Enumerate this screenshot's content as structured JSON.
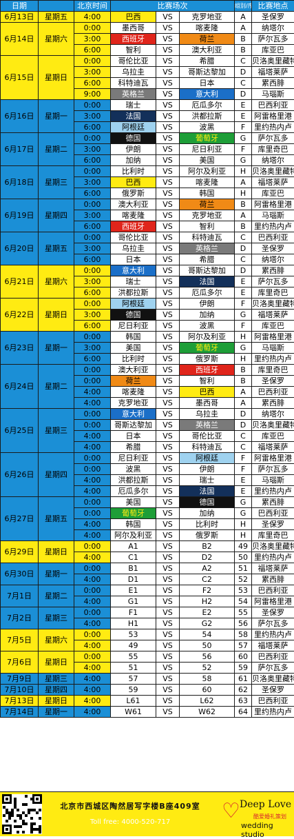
{
  "header": {
    "date": "日期",
    "time": "北京时间",
    "match": "比赛场次",
    "group": "组别/序号",
    "venue": "比赛地点",
    "vs": "VS"
  },
  "days": [
    {
      "date": "6月13日",
      "weekday": "星期五",
      "color": "yellow",
      "matches": [
        {
          "time": "4:00",
          "home": "巴西",
          "home_hl": "yellow",
          "away": "克罗地亚",
          "away_hl": "",
          "group": "A",
          "venue": "圣保罗"
        }
      ]
    },
    {
      "date": "6月14日",
      "weekday": "星期六",
      "color": "yellow",
      "matches": [
        {
          "time": "0:00",
          "home": "墨西哥",
          "home_hl": "",
          "away": "喀麦隆",
          "away_hl": "",
          "group": "A",
          "venue": "纳塔尔"
        },
        {
          "time": "3:00",
          "home": "西班牙",
          "home_hl": "red",
          "away": "荷兰",
          "away_hl": "orange",
          "group": "B",
          "venue": "萨尔瓦多"
        },
        {
          "time": "6:00",
          "home": "智利",
          "home_hl": "",
          "away": "澳大利亚",
          "away_hl": "",
          "group": "B",
          "venue": "库亚巴"
        }
      ]
    },
    {
      "date": "6月15日",
      "weekday": "星期日",
      "color": "yellow",
      "matches": [
        {
          "time": "0:00",
          "home": "哥伦比亚",
          "home_hl": "",
          "away": "希腊",
          "away_hl": "",
          "group": "C",
          "venue": "贝洛奥里藏特"
        },
        {
          "time": "3:00",
          "home": "乌拉圭",
          "home_hl": "",
          "away": "哥斯达黎加",
          "away_hl": "",
          "group": "D",
          "venue": "福塔莱萨"
        },
        {
          "time": "6:00",
          "home": "科特迪瓦",
          "home_hl": "",
          "away": "日本",
          "away_hl": "",
          "group": "C",
          "venue": "累西腓"
        },
        {
          "time": "9:00",
          "home": "英格兰",
          "home_hl": "gray",
          "away": "意大利",
          "away_hl": "blue",
          "group": "D",
          "venue": "马瑙斯"
        }
      ]
    },
    {
      "date": "6月16日",
      "weekday": "星期一",
      "color": "blue",
      "matches": [
        {
          "time": "0:00",
          "home": "瑞士",
          "home_hl": "",
          "away": "厄瓜多尔",
          "away_hl": "",
          "group": "E",
          "venue": "巴西利亚"
        },
        {
          "time": "3:00",
          "home": "法国",
          "home_hl": "navy",
          "away": "洪都拉斯",
          "away_hl": "",
          "group": "E",
          "venue": "阿雷格里港"
        },
        {
          "time": "6:00",
          "home": "阿根廷",
          "home_hl": "light",
          "away": "波黑",
          "away_hl": "",
          "group": "F",
          "venue": "里约热内卢"
        }
      ]
    },
    {
      "date": "6月17日",
      "weekday": "星期二",
      "color": "blue",
      "matches": [
        {
          "time": "0:00",
          "home": "德国",
          "home_hl": "black",
          "away": "葡萄牙",
          "away_hl": "green",
          "group": "G",
          "venue": "萨尔瓦多"
        },
        {
          "time": "3:00",
          "home": "伊朗",
          "home_hl": "",
          "away": "尼日利亚",
          "away_hl": "",
          "group": "F",
          "venue": "库里奇巴"
        },
        {
          "time": "6:00",
          "home": "加纳",
          "home_hl": "",
          "away": "美国",
          "away_hl": "",
          "group": "G",
          "venue": "纳塔尔"
        }
      ]
    },
    {
      "date": "6月18日",
      "weekday": "星期三",
      "color": "blue",
      "matches": [
        {
          "time": "0:00",
          "home": "比利时",
          "home_hl": "",
          "away": "阿尔及利亚",
          "away_hl": "",
          "group": "H",
          "venue": "贝洛奥里藏特"
        },
        {
          "time": "3:00",
          "home": "巴西",
          "home_hl": "yellow",
          "away": "喀麦隆",
          "away_hl": "",
          "group": "A",
          "venue": "福塔莱萨"
        },
        {
          "time": "6:00",
          "home": "俄罗斯",
          "home_hl": "",
          "away": "韩国",
          "away_hl": "",
          "group": "H",
          "venue": "库亚巴"
        }
      ]
    },
    {
      "date": "6月19日",
      "weekday": "星期四",
      "color": "blue",
      "matches": [
        {
          "time": "0:00",
          "home": "澳大利亚",
          "home_hl": "",
          "away": "荷兰",
          "away_hl": "orange",
          "group": "B",
          "venue": "阿雷格里港"
        },
        {
          "time": "3:00",
          "home": "喀麦隆",
          "home_hl": "",
          "away": "克罗地亚",
          "away_hl": "",
          "group": "A",
          "venue": "马瑙斯"
        },
        {
          "time": "6:00",
          "home": "西班牙",
          "home_hl": "red",
          "away": "智利",
          "away_hl": "",
          "group": "B",
          "venue": "里约热内卢"
        }
      ]
    },
    {
      "date": "6月20日",
      "weekday": "星期五",
      "color": "blue",
      "matches": [
        {
          "time": "0:00",
          "home": "哥伦比亚",
          "home_hl": "",
          "away": "科特迪瓦",
          "away_hl": "",
          "group": "C",
          "venue": "巴西利亚"
        },
        {
          "time": "3:00",
          "home": "乌拉圭",
          "home_hl": "",
          "away": "英格兰",
          "away_hl": "gray",
          "group": "D",
          "venue": "圣保罗"
        },
        {
          "time": "6:00",
          "home": "日本",
          "home_hl": "",
          "away": "希腊",
          "away_hl": "",
          "group": "C",
          "venue": "纳塔尔"
        }
      ]
    },
    {
      "date": "6月21日",
      "weekday": "星期六",
      "color": "yellow",
      "matches": [
        {
          "time": "0:00",
          "home": "意大利",
          "home_hl": "blue",
          "away": "哥斯达黎加",
          "away_hl": "",
          "group": "D",
          "venue": "累西腓"
        },
        {
          "time": "3:00",
          "home": "瑞士",
          "home_hl": "",
          "away": "法国",
          "away_hl": "navy",
          "group": "E",
          "venue": "萨尔瓦多"
        },
        {
          "time": "6:00",
          "home": "洪都拉斯",
          "home_hl": "",
          "away": "厄瓜多尔",
          "away_hl": "",
          "group": "E",
          "venue": "库里奇巴"
        }
      ]
    },
    {
      "date": "6月22日",
      "weekday": "星期日",
      "color": "yellow",
      "matches": [
        {
          "time": "0:00",
          "home": "阿根廷",
          "home_hl": "light",
          "away": "伊朗",
          "away_hl": "",
          "group": "F",
          "venue": "贝洛奥里藏特"
        },
        {
          "time": "3:00",
          "home": "德国",
          "home_hl": "black",
          "away": "加纳",
          "away_hl": "",
          "group": "G",
          "venue": "福塔莱萨"
        },
        {
          "time": "6:00",
          "home": "尼日利亚",
          "home_hl": "",
          "away": "波黑",
          "away_hl": "",
          "group": "F",
          "venue": "库亚巴"
        }
      ]
    },
    {
      "date": "6月23日",
      "weekday": "星期一",
      "color": "blue",
      "matches": [
        {
          "time": "0:00",
          "home": "韩国",
          "home_hl": "",
          "away": "阿尔及利亚",
          "away_hl": "",
          "group": "H",
          "venue": "阿雷格里港"
        },
        {
          "time": "3:00",
          "home": "美国",
          "home_hl": "",
          "away": "葡萄牙",
          "away_hl": "green",
          "group": "G",
          "venue": "马瑙斯"
        },
        {
          "time": "6:00",
          "home": "比利时",
          "home_hl": "",
          "away": "俄罗斯",
          "away_hl": "",
          "group": "H",
          "venue": "里约热内卢"
        }
      ]
    },
    {
      "date": "6月24日",
      "weekday": "星期二",
      "color": "blue",
      "matches": [
        {
          "time": "0:00",
          "home": "澳大利亚",
          "home_hl": "",
          "away": "西班牙",
          "away_hl": "red",
          "group": "B",
          "venue": "库里奇巴"
        },
        {
          "time": "0:00",
          "home": "荷兰",
          "home_hl": "orange",
          "away": "智利",
          "away_hl": "",
          "group": "B",
          "venue": "圣保罗"
        },
        {
          "time": "4:00",
          "home": "喀麦隆",
          "home_hl": "",
          "away": "巴西",
          "away_hl": "yellow",
          "group": "A",
          "venue": "巴西利亚"
        },
        {
          "time": "4:00",
          "home": "克罗地亚",
          "home_hl": "",
          "away": "墨西哥",
          "away_hl": "",
          "group": "A",
          "venue": "累西腓"
        }
      ]
    },
    {
      "date": "6月25日",
      "weekday": "星期三",
      "color": "blue",
      "matches": [
        {
          "time": "0:00",
          "home": "意大利",
          "home_hl": "blue",
          "away": "乌拉圭",
          "away_hl": "",
          "group": "D",
          "venue": "纳塔尔"
        },
        {
          "time": "0:00",
          "home": "哥斯达黎加",
          "home_hl": "",
          "away": "英格兰",
          "away_hl": "gray",
          "group": "D",
          "venue": "贝洛奥里藏特"
        },
        {
          "time": "4:00",
          "home": "日本",
          "home_hl": "",
          "away": "哥伦比亚",
          "away_hl": "",
          "group": "C",
          "venue": "库亚巴"
        },
        {
          "time": "4:00",
          "home": "希腊",
          "home_hl": "",
          "away": "科特迪瓦",
          "away_hl": "",
          "group": "C",
          "venue": "福塔莱萨"
        }
      ]
    },
    {
      "date": "6月26日",
      "weekday": "星期四",
      "color": "blue",
      "matches": [
        {
          "time": "0:00",
          "home": "尼日利亚",
          "home_hl": "",
          "away": "阿根廷",
          "away_hl": "light",
          "group": "F",
          "venue": "阿雷格里港"
        },
        {
          "time": "0:00",
          "home": "波黑",
          "home_hl": "",
          "away": "伊朗",
          "away_hl": "",
          "group": "F",
          "venue": "萨尔瓦多"
        },
        {
          "time": "4:00",
          "home": "洪都拉斯",
          "home_hl": "",
          "away": "瑞士",
          "away_hl": "",
          "group": "E",
          "venue": "马瑙斯"
        },
        {
          "time": "4:00",
          "home": "厄瓜多尔",
          "home_hl": "",
          "away": "法国",
          "away_hl": "navy",
          "group": "E",
          "venue": "里约热内卢"
        }
      ]
    },
    {
      "date": "6月27日",
      "weekday": "星期五",
      "color": "blue",
      "matches": [
        {
          "time": "0:00",
          "home": "美国",
          "home_hl": "",
          "away": "德国",
          "away_hl": "black",
          "group": "G",
          "venue": "累西腓"
        },
        {
          "time": "0:00",
          "home": "葡萄牙",
          "home_hl": "green",
          "away": "加纳",
          "away_hl": "",
          "group": "G",
          "venue": "巴西利亚"
        },
        {
          "time": "4:00",
          "home": "韩国",
          "home_hl": "",
          "away": "比利时",
          "away_hl": "",
          "group": "H",
          "venue": "圣保罗"
        },
        {
          "time": "4:00",
          "home": "阿尔及利亚",
          "home_hl": "",
          "away": "俄罗斯",
          "away_hl": "",
          "group": "H",
          "venue": "库里奇巴"
        }
      ]
    },
    {
      "date": "6月29日",
      "weekday": "星期日",
      "color": "yellow",
      "matches": [
        {
          "time": "0:00",
          "home": "A1",
          "home_hl": "",
          "away": "B2",
          "away_hl": "",
          "group": "49",
          "venue": "贝洛奥里藏特"
        },
        {
          "time": "4:00",
          "home": "C1",
          "home_hl": "",
          "away": "D2",
          "away_hl": "",
          "group": "50",
          "venue": "里约热内卢"
        }
      ]
    },
    {
      "date": "6月30日",
      "weekday": "星期一",
      "color": "blue",
      "matches": [
        {
          "time": "0:00",
          "home": "B1",
          "home_hl": "",
          "away": "A2",
          "away_hl": "",
          "group": "51",
          "venue": "福塔莱萨"
        },
        {
          "time": "4:00",
          "home": "D1",
          "home_hl": "",
          "away": "C2",
          "away_hl": "",
          "group": "52",
          "venue": "累西腓"
        }
      ]
    },
    {
      "date": "7月1日",
      "weekday": "星期二",
      "color": "blue",
      "matches": [
        {
          "time": "0:00",
          "home": "E1",
          "home_hl": "",
          "away": "F2",
          "away_hl": "",
          "group": "53",
          "venue": "巴西利亚"
        },
        {
          "time": "4:00",
          "home": "G1",
          "home_hl": "",
          "away": "H2",
          "away_hl": "",
          "group": "54",
          "venue": "阿雷格里港"
        }
      ]
    },
    {
      "date": "7月2日",
      "weekday": "星期三",
      "color": "blue",
      "matches": [
        {
          "time": "0:00",
          "home": "F1",
          "home_hl": "",
          "away": "E2",
          "away_hl": "",
          "group": "55",
          "venue": "圣保罗"
        },
        {
          "time": "4:00",
          "home": "H1",
          "home_hl": "",
          "away": "G2",
          "away_hl": "",
          "group": "56",
          "venue": "萨尔瓦多"
        }
      ]
    },
    {
      "date": "7月5日",
      "weekday": "星期六",
      "color": "yellow",
      "matches": [
        {
          "time": "0:00",
          "home": "53",
          "home_hl": "",
          "away": "54",
          "away_hl": "",
          "group": "58",
          "venue": "里约热内卢"
        },
        {
          "time": "4:00",
          "home": "49",
          "home_hl": "",
          "away": "50",
          "away_hl": "",
          "group": "57",
          "venue": "福塔莱萨"
        }
      ]
    },
    {
      "date": "7月6日",
      "weekday": "星期日",
      "color": "yellow",
      "matches": [
        {
          "time": "0:00",
          "home": "55",
          "home_hl": "",
          "away": "56",
          "away_hl": "",
          "group": "60",
          "venue": "巴西利亚"
        },
        {
          "time": "4:00",
          "home": "51",
          "home_hl": "",
          "away": "52",
          "away_hl": "",
          "group": "59",
          "venue": "萨尔瓦多"
        }
      ]
    },
    {
      "date": "7月9日",
      "weekday": "星期三",
      "color": "blue",
      "matches": [
        {
          "time": "4:00",
          "home": "57",
          "home_hl": "",
          "away": "58",
          "away_hl": "",
          "group": "61",
          "venue": "贝洛奥里藏特"
        }
      ]
    },
    {
      "date": "7月10日",
      "weekday": "星期四",
      "color": "blue",
      "matches": [
        {
          "time": "4:00",
          "home": "59",
          "home_hl": "",
          "away": "60",
          "away_hl": "",
          "group": "62",
          "venue": "圣保罗"
        }
      ]
    },
    {
      "date": "7月13日",
      "weekday": "星期日",
      "color": "yellow",
      "matches": [
        {
          "time": "4:00",
          "home": "L61",
          "home_hl": "",
          "away": "L62",
          "away_hl": "",
          "group": "63",
          "venue": "巴西利亚"
        }
      ]
    },
    {
      "date": "7月14日",
      "weekday": "星期一",
      "color": "blue",
      "matches": [
        {
          "time": "4:00",
          "home": "W61",
          "home_hl": "",
          "away": "W62",
          "away_hl": "",
          "group": "64",
          "venue": "里约热内卢"
        }
      ]
    }
  ],
  "footer": {
    "address": "北京市西城区陶然居写字楼B座409室",
    "phone": "Toll free: 4000-520-717",
    "brand": "Deep Love",
    "brand_cn": "酷爱婚礼策划",
    "brand_sub": "wedding studio",
    "heart_icon": "heart-icon",
    "qr_icon": "qr-code-icon"
  },
  "colors": {
    "yellow": "#ffeb12",
    "blue": "#1b8fd6",
    "red": "#e0251b",
    "orange": "#f08a16",
    "navy": "#13305a",
    "green": "#1e9e38",
    "black": "#111111",
    "gray": "#7a7a7a",
    "light": "#9fd2ef"
  }
}
